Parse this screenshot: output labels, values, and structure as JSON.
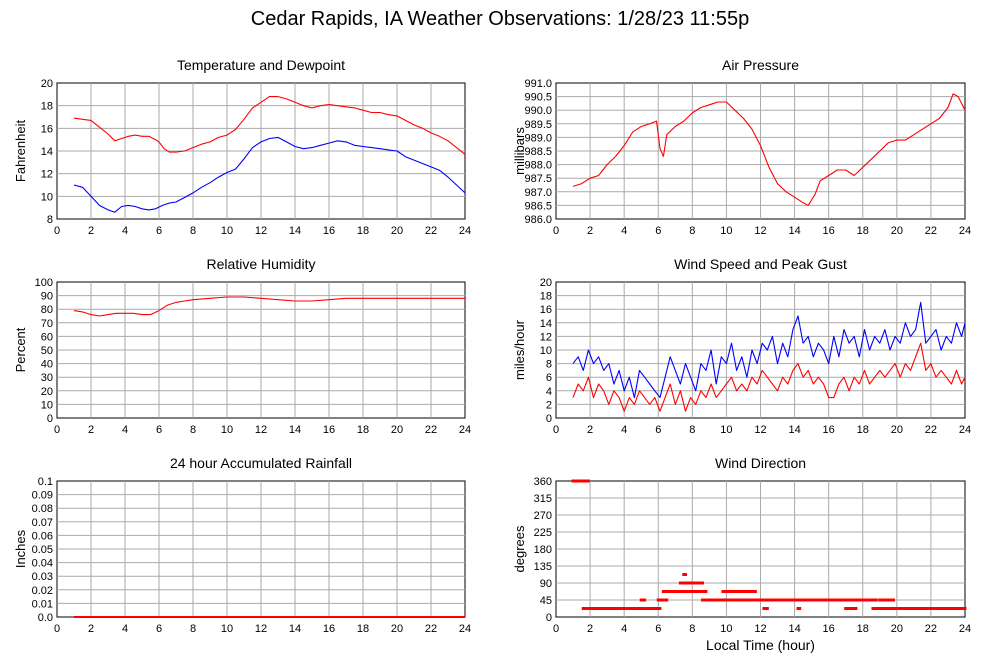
{
  "page": {
    "title": "Cedar Rapids, IA Weather Observations: 1/28/23 11:55p"
  },
  "chart_data": [
    {
      "id": "temp",
      "type": "line",
      "title": "Temperature and Dewpoint",
      "xlabel": "",
      "ylabel": "Fahrenheit",
      "xlim": [
        0,
        24
      ],
      "ylim": [
        8,
        20
      ],
      "xticks": [
        0,
        2,
        4,
        6,
        8,
        10,
        12,
        14,
        16,
        18,
        20,
        22,
        24
      ],
      "yticks": [
        8,
        10,
        12,
        14,
        16,
        18,
        20
      ],
      "grid": true,
      "series": [
        {
          "color": "#ff0000",
          "x": [
            1.0,
            1.5,
            2.0,
            2.5,
            3.0,
            3.4,
            3.8,
            4.2,
            4.6,
            5.0,
            5.4,
            5.8,
            6.0,
            6.3,
            6.6,
            7.0,
            7.5,
            8.0,
            8.5,
            9.0,
            9.5,
            10.0,
            10.5,
            11.0,
            11.5,
            12.0,
            12.5,
            13.0,
            13.5,
            14.0,
            14.5,
            15.0,
            15.5,
            16.0,
            16.5,
            17.0,
            17.5,
            18.0,
            18.5,
            19.0,
            19.5,
            20.0,
            20.5,
            21.0,
            21.5,
            22.0,
            22.5,
            23.0,
            23.5,
            24.0
          ],
          "y": [
            16.9,
            16.8,
            16.7,
            16.1,
            15.5,
            14.9,
            15.1,
            15.3,
            15.4,
            15.3,
            15.3,
            15.0,
            14.8,
            14.2,
            13.9,
            13.9,
            14.0,
            14.3,
            14.6,
            14.8,
            15.2,
            15.4,
            15.9,
            16.8,
            17.8,
            18.3,
            18.8,
            18.8,
            18.6,
            18.3,
            18.0,
            17.8,
            18.0,
            18.1,
            18.0,
            17.9,
            17.8,
            17.6,
            17.4,
            17.4,
            17.2,
            17.1,
            16.7,
            16.3,
            16.0,
            15.6,
            15.3,
            14.9,
            14.3,
            13.7
          ]
        },
        {
          "color": "#0000ff",
          "x": [
            1.0,
            1.5,
            2.0,
            2.5,
            3.0,
            3.4,
            3.8,
            4.2,
            4.6,
            5.0,
            5.4,
            5.8,
            6.2,
            6.6,
            7.0,
            7.5,
            8.0,
            8.5,
            9.0,
            9.5,
            10.0,
            10.5,
            11.0,
            11.5,
            12.0,
            12.5,
            13.0,
            13.5,
            14.0,
            14.5,
            15.0,
            15.5,
            16.0,
            16.5,
            17.0,
            17.5,
            18.0,
            18.5,
            19.0,
            19.5,
            20.0,
            20.5,
            21.0,
            21.5,
            22.0,
            22.5,
            23.0,
            23.5,
            24.0
          ],
          "y": [
            11.0,
            10.8,
            10.0,
            9.2,
            8.8,
            8.6,
            9.1,
            9.2,
            9.1,
            8.9,
            8.8,
            8.9,
            9.2,
            9.4,
            9.5,
            9.9,
            10.3,
            10.8,
            11.2,
            11.7,
            12.1,
            12.4,
            13.3,
            14.3,
            14.8,
            15.1,
            15.2,
            14.8,
            14.4,
            14.2,
            14.3,
            14.5,
            14.7,
            14.9,
            14.8,
            14.5,
            14.4,
            14.3,
            14.2,
            14.1,
            14.0,
            13.5,
            13.2,
            12.9,
            12.6,
            12.3,
            11.7,
            11.0,
            10.3
          ]
        }
      ]
    },
    {
      "id": "pressure",
      "type": "line",
      "title": "Air Pressure",
      "xlabel": "",
      "ylabel": "millibars",
      "xlim": [
        0,
        24
      ],
      "ylim": [
        986.0,
        991.0
      ],
      "xticks": [
        0,
        2,
        4,
        6,
        8,
        10,
        12,
        14,
        16,
        18,
        20,
        22,
        24
      ],
      "yticks": [
        986.0,
        986.5,
        987.0,
        987.5,
        988.0,
        988.5,
        989.0,
        989.5,
        990.0,
        990.5,
        991.0
      ],
      "ytick_labels": [
        "986.0",
        "986.5",
        "987.0",
        "987.5",
        "988.0",
        "988.5",
        "989.0",
        "989.5",
        "990.0",
        "990.5",
        "991.0"
      ],
      "grid": true,
      "series": [
        {
          "color": "#ff0000",
          "x": [
            1.0,
            1.5,
            2.0,
            2.5,
            3.0,
            3.5,
            4.0,
            4.5,
            5.0,
            5.5,
            5.9,
            6.1,
            6.3,
            6.5,
            7.0,
            7.5,
            8.0,
            8.5,
            9.0,
            9.5,
            10.0,
            10.5,
            11.0,
            11.5,
            12.0,
            12.5,
            13.0,
            13.5,
            14.0,
            14.5,
            14.8,
            15.2,
            15.5,
            16.0,
            16.5,
            17.0,
            17.5,
            18.0,
            18.5,
            19.0,
            19.5,
            20.0,
            20.5,
            21.0,
            21.5,
            22.0,
            22.5,
            23.0,
            23.3,
            23.6,
            24.0
          ],
          "y": [
            987.2,
            987.3,
            987.5,
            987.6,
            988.0,
            988.3,
            988.7,
            989.2,
            989.4,
            989.5,
            989.6,
            988.6,
            988.3,
            989.1,
            989.4,
            989.6,
            989.9,
            990.1,
            990.2,
            990.3,
            990.3,
            990.0,
            989.7,
            989.3,
            988.7,
            987.9,
            987.3,
            987.0,
            986.8,
            986.6,
            986.5,
            986.9,
            987.4,
            987.6,
            987.8,
            987.8,
            987.6,
            987.9,
            988.2,
            988.5,
            988.8,
            988.9,
            988.9,
            989.1,
            989.3,
            989.5,
            989.7,
            990.1,
            990.6,
            990.5,
            990.0
          ]
        }
      ]
    },
    {
      "id": "rh",
      "type": "line",
      "title": "Relative Humidity",
      "xlabel": "",
      "ylabel": "Percent",
      "xlim": [
        0,
        24
      ],
      "ylim": [
        0,
        100
      ],
      "xticks": [
        0,
        2,
        4,
        6,
        8,
        10,
        12,
        14,
        16,
        18,
        20,
        22,
        24
      ],
      "yticks": [
        0,
        10,
        20,
        30,
        40,
        50,
        60,
        70,
        80,
        90,
        100
      ],
      "grid": true,
      "series": [
        {
          "color": "#ff0000",
          "x": [
            1.0,
            1.5,
            2.0,
            2.5,
            3.0,
            3.5,
            4.0,
            4.5,
            5.0,
            5.5,
            6.0,
            6.5,
            7.0,
            7.5,
            8.0,
            9.0,
            10.0,
            11.0,
            12.0,
            13.0,
            14.0,
            15.0,
            16.0,
            17.0,
            18.0,
            19.0,
            20.0,
            21.0,
            22.0,
            23.0,
            24.0
          ],
          "y": [
            79,
            78,
            76,
            75,
            76,
            77,
            77,
            77,
            76,
            76,
            79,
            83,
            85,
            86,
            87,
            88,
            89,
            89,
            88,
            87,
            86,
            86,
            87,
            88,
            88,
            88,
            88,
            88,
            88,
            88,
            88
          ]
        }
      ]
    },
    {
      "id": "wind",
      "type": "line",
      "title": "Wind Speed and Peak Gust",
      "xlabel": "",
      "ylabel": "miles/hour",
      "xlim": [
        0,
        24
      ],
      "ylim": [
        0,
        20
      ],
      "xticks": [
        0,
        2,
        4,
        6,
        8,
        10,
        12,
        14,
        16,
        18,
        20,
        22,
        24
      ],
      "yticks": [
        0,
        2,
        4,
        6,
        8,
        10,
        12,
        14,
        16,
        18,
        20
      ],
      "grid": true,
      "series": [
        {
          "color": "#0000ff",
          "x": [
            1.0,
            1.3,
            1.6,
            1.9,
            2.2,
            2.5,
            2.8,
            3.1,
            3.4,
            3.7,
            4.0,
            4.3,
            4.6,
            4.9,
            5.2,
            5.5,
            5.8,
            6.1,
            6.4,
            6.7,
            7.0,
            7.3,
            7.6,
            7.9,
            8.2,
            8.5,
            8.8,
            9.1,
            9.4,
            9.7,
            10.0,
            10.3,
            10.6,
            10.9,
            11.2,
            11.5,
            11.8,
            12.1,
            12.4,
            12.7,
            13.0,
            13.3,
            13.6,
            13.9,
            14.2,
            14.5,
            14.8,
            15.1,
            15.4,
            15.7,
            16.0,
            16.3,
            16.6,
            16.9,
            17.2,
            17.5,
            17.8,
            18.1,
            18.4,
            18.7,
            19.0,
            19.3,
            19.6,
            19.9,
            20.2,
            20.5,
            20.8,
            21.1,
            21.4,
            21.7,
            22.0,
            22.3,
            22.6,
            22.9,
            23.2,
            23.5,
            23.8,
            24.0
          ],
          "y": [
            8,
            9,
            7,
            10,
            8,
            9,
            7,
            8,
            5,
            7,
            4,
            6,
            3,
            7,
            6,
            5,
            4,
            3,
            6,
            9,
            7,
            5,
            8,
            6,
            4,
            8,
            7,
            10,
            5,
            9,
            8,
            11,
            7,
            9,
            6,
            10,
            8,
            11,
            10,
            12,
            8,
            11,
            9,
            13,
            15,
            11,
            12,
            9,
            11,
            10,
            8,
            12,
            9,
            13,
            11,
            12,
            9,
            13,
            10,
            12,
            11,
            13,
            10,
            12,
            11,
            14,
            12,
            13,
            17,
            11,
            12,
            13,
            10,
            12,
            11,
            14,
            12,
            14
          ]
        },
        {
          "color": "#ff0000",
          "x": [
            1.0,
            1.3,
            1.6,
            1.9,
            2.2,
            2.5,
            2.8,
            3.1,
            3.4,
            3.7,
            4.0,
            4.3,
            4.6,
            4.9,
            5.2,
            5.5,
            5.8,
            6.1,
            6.4,
            6.7,
            7.0,
            7.3,
            7.6,
            7.9,
            8.2,
            8.5,
            8.8,
            9.1,
            9.4,
            9.7,
            10.0,
            10.3,
            10.6,
            10.9,
            11.2,
            11.5,
            11.8,
            12.1,
            12.4,
            12.7,
            13.0,
            13.3,
            13.6,
            13.9,
            14.2,
            14.5,
            14.8,
            15.1,
            15.4,
            15.7,
            16.0,
            16.3,
            16.6,
            16.9,
            17.2,
            17.5,
            17.8,
            18.1,
            18.4,
            18.7,
            19.0,
            19.3,
            19.6,
            19.9,
            20.2,
            20.5,
            20.8,
            21.1,
            21.4,
            21.7,
            22.0,
            22.3,
            22.6,
            22.9,
            23.2,
            23.5,
            23.8,
            24.0
          ],
          "y": [
            3,
            5,
            4,
            6,
            3,
            5,
            4,
            2,
            4,
            3,
            1,
            3,
            2,
            4,
            3,
            2,
            3,
            1,
            3,
            5,
            2,
            4,
            1,
            3,
            2,
            4,
            3,
            5,
            3,
            4,
            5,
            6,
            4,
            5,
            4,
            6,
            5,
            7,
            6,
            5,
            4,
            6,
            5,
            7,
            8,
            6,
            7,
            5,
            6,
            5,
            3,
            3,
            5,
            6,
            4,
            6,
            5,
            7,
            5,
            6,
            7,
            6,
            7,
            8,
            6,
            8,
            7,
            9,
            11,
            7,
            8,
            6,
            7,
            6,
            5,
            7,
            5,
            6
          ]
        }
      ]
    },
    {
      "id": "rain",
      "type": "line",
      "title": "24 hour Accumulated Rainfall",
      "xlabel": "",
      "ylabel": "Inches",
      "xlim": [
        0,
        24
      ],
      "ylim": [
        0,
        0.1
      ],
      "xticks": [
        0,
        2,
        4,
        6,
        8,
        10,
        12,
        14,
        16,
        18,
        20,
        22,
        24
      ],
      "yticks": [
        0,
        0.01,
        0.02,
        0.03,
        0.04,
        0.05,
        0.06,
        0.07,
        0.08,
        0.09,
        0.1
      ],
      "ytick_labels": [
        "0.0",
        "0.01",
        "0.02",
        "0.03",
        "0.04",
        "0.05",
        "0.06",
        "0.07",
        "0.08",
        "0.09",
        "0.1"
      ],
      "grid": true,
      "series": [
        {
          "color": "#ff0000",
          "x": [
            1.0,
            24.0
          ],
          "y": [
            0,
            0
          ]
        }
      ]
    },
    {
      "id": "dir",
      "type": "scatter",
      "title": "Wind Direction",
      "xlabel": "Local Time (hour)",
      "ylabel": "degrees",
      "xlim": [
        0,
        24
      ],
      "ylim": [
        0,
        360
      ],
      "xticks": [
        0,
        2,
        4,
        6,
        8,
        10,
        12,
        14,
        16,
        18,
        20,
        22,
        24
      ],
      "yticks": [
        0,
        45,
        90,
        135,
        180,
        225,
        270,
        315,
        360
      ],
      "grid": true,
      "series": [
        {
          "color": "#ff0000",
          "segments": [
            {
              "x0": 1.0,
              "x1": 1.9,
              "y": 360
            },
            {
              "x0": 1.6,
              "x1": 6.1,
              "y": 22.5
            },
            {
              "x0": 5.0,
              "x1": 5.2,
              "y": 45
            },
            {
              "x0": 6.0,
              "x1": 6.5,
              "y": 45
            },
            {
              "x0": 6.3,
              "x1": 8.8,
              "y": 67.5
            },
            {
              "x0": 7.3,
              "x1": 8.6,
              "y": 90
            },
            {
              "x0": 7.5,
              "x1": 7.6,
              "y": 112.5
            },
            {
              "x0": 8.6,
              "x1": 10.2,
              "y": 45
            },
            {
              "x0": 9.8,
              "x1": 11.7,
              "y": 67.5
            },
            {
              "x0": 10.0,
              "x1": 18.8,
              "y": 45
            },
            {
              "x0": 12.2,
              "x1": 12.4,
              "y": 22.5
            },
            {
              "x0": 14.2,
              "x1": 14.3,
              "y": 22.5
            },
            {
              "x0": 17.0,
              "x1": 17.6,
              "y": 22.5
            },
            {
              "x0": 18.6,
              "x1": 24.0,
              "y": 22.5
            },
            {
              "x0": 19.0,
              "x1": 19.8,
              "y": 45
            }
          ]
        }
      ]
    }
  ]
}
